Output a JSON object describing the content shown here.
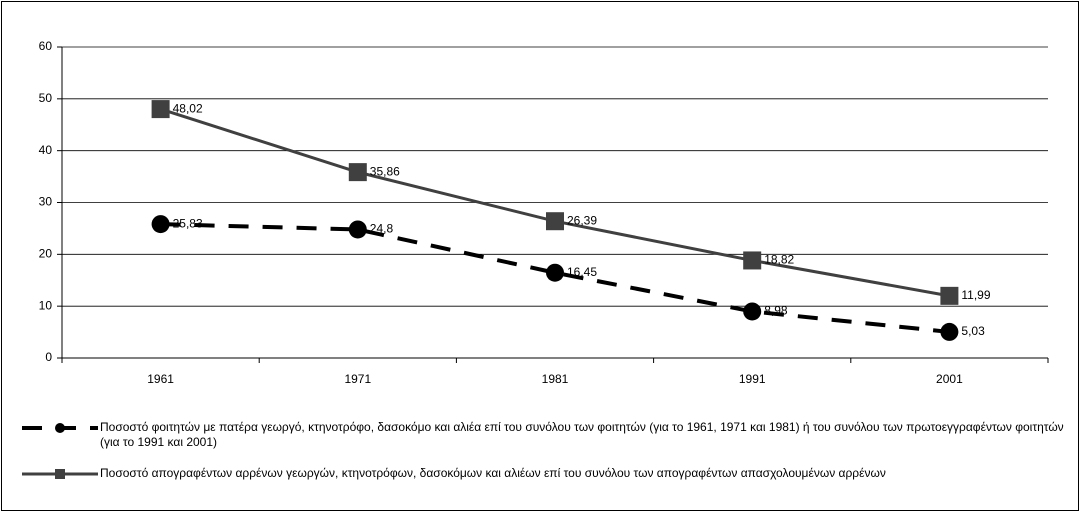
{
  "chart_data": {
    "type": "line",
    "categories": [
      "1961",
      "1971",
      "1981",
      "1991",
      "2001"
    ],
    "series": [
      {
        "name": "Ποσοστό φοιτητών με πατέρα γεωργό, κτηνοτρόφο, δασοκόμο και αλιέα επί του συνόλου των φοιτητών (για το 1961, 1971 και 1981) ή του συνόλου των πρωτοεγγραφέντων φοιτητών (για το 1991 και 2001)",
        "color": "#000000",
        "line_style": "dashed",
        "marker": "circle",
        "values": [
          25.83,
          24.8,
          16.45,
          8.98,
          5.03
        ],
        "value_labels": [
          "25,83",
          "24,8",
          "16,45",
          "8,98",
          "5,03"
        ]
      },
      {
        "name": "Ποσοστό απογραφέντων αρρένων γεωργών, κτηνοτρόφων, δασοκόμων και αλιέων επί του συνόλου των απογραφέντων απασχολουμένων αρρένων",
        "color": "#404040",
        "line_style": "solid",
        "marker": "square",
        "values": [
          48.02,
          35.86,
          26.39,
          18.82,
          11.99
        ],
        "value_labels": [
          "48,02",
          "35,86",
          "26,39",
          "18,82",
          "11,99"
        ]
      }
    ],
    "ylim": [
      0,
      60
    ],
    "yticks": [
      0,
      10,
      20,
      30,
      40,
      50,
      60
    ],
    "grid": true,
    "legend": "bottom"
  }
}
